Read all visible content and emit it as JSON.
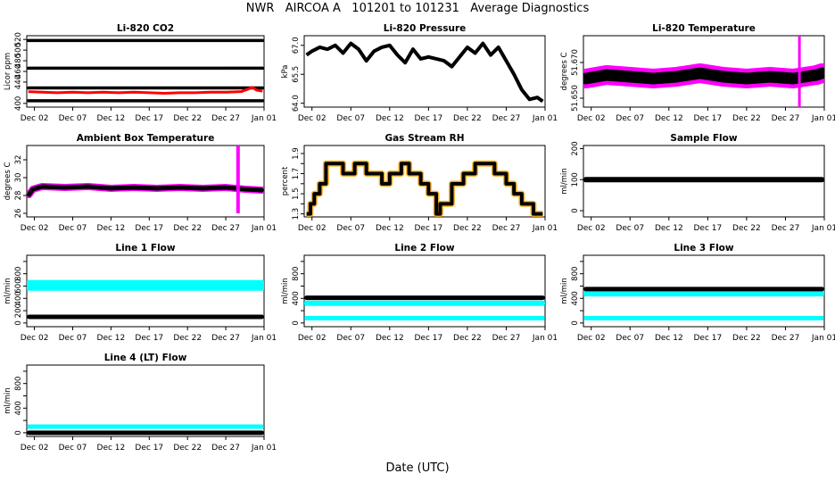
{
  "page": {
    "title": "NWR   AIRCOA A   101201 to 101231   Average Diagnostics",
    "xlabel": "Date (UTC)"
  },
  "colors": {
    "black": "#000000",
    "red": "#ff0000",
    "magenta": "#ff00ff",
    "orange": "#ffa500",
    "cyan": "#00ffff",
    "blue": "#0000ff"
  },
  "chart_data": [
    {
      "id": "co2",
      "type": "scatter",
      "title": "Li-820 CO2",
      "ylabel": "Licor ppm",
      "ylim": [
        393,
        527
      ],
      "yticks": [
        400,
        440,
        460,
        480,
        500,
        520
      ],
      "ytick_labels": [
        "400",
        "440",
        "460",
        "480",
        "500",
        "520"
      ],
      "xlim": [
        0,
        31
      ],
      "xticks": [
        1,
        6,
        11,
        16,
        21,
        26,
        31
      ],
      "xtick_labels": [
        "Dec 02",
        "Dec 07",
        "Dec 12",
        "Dec 17",
        "Dec 22",
        "Dec 27",
        "Jan 01"
      ],
      "series": [
        {
          "name": "standard 1",
          "color": "black",
          "mode": "band",
          "x": [
            0.2,
            30.8
          ],
          "y": [
            518,
            518
          ],
          "width": 3.5
        },
        {
          "name": "standard 2",
          "color": "black",
          "mode": "band",
          "x": [
            0.2,
            30.8
          ],
          "y": [
            466,
            466
          ],
          "width": 3.5
        },
        {
          "name": "standard 3",
          "color": "black",
          "mode": "band",
          "x": [
            0.2,
            30.8
          ],
          "y": [
            429,
            429
          ],
          "width": 3.5
        },
        {
          "name": "standard 4",
          "color": "black",
          "mode": "band",
          "x": [
            0.2,
            30.8
          ],
          "y": [
            405,
            405
          ],
          "width": 3.5
        },
        {
          "name": "sample air",
          "color": "red",
          "mode": "line",
          "x": [
            0.2,
            2,
            4,
            6,
            8,
            10,
            12,
            14,
            16,
            18,
            20,
            22,
            24,
            26,
            28,
            29.5,
            30,
            30.8
          ],
          "y": [
            422,
            421,
            420,
            421,
            420,
            421,
            420,
            421,
            420,
            419,
            420,
            420,
            421,
            421,
            422,
            430,
            425,
            423
          ],
          "width": 3
        }
      ]
    },
    {
      "id": "pressure",
      "type": "line",
      "title": "Li-820 Pressure",
      "ylabel": "kPa",
      "ylim": [
        63.8,
        67.5
      ],
      "yticks": [
        64.0,
        65.5,
        67.0
      ],
      "ytick_labels": [
        "64.0",
        "65.5",
        "67.0"
      ],
      "xlim": [
        0,
        31
      ],
      "xticks": [
        1,
        6,
        11,
        16,
        21,
        26,
        31
      ],
      "xtick_labels": [
        "Dec 02",
        "Dec 07",
        "Dec 12",
        "Dec 17",
        "Dec 22",
        "Dec 27",
        "Jan 01"
      ],
      "series": [
        {
          "name": "pressure",
          "color": "black",
          "mode": "line",
          "width": 4,
          "x": [
            0.3,
            1,
            2,
            3,
            4,
            5,
            6,
            7,
            8,
            9,
            10,
            11,
            12,
            13,
            14,
            15,
            16,
            17,
            18,
            19,
            20,
            21,
            22,
            23,
            24,
            25,
            26,
            27,
            28,
            29,
            30,
            30.7
          ],
          "y": [
            66.5,
            66.7,
            66.9,
            66.8,
            67.0,
            66.6,
            67.1,
            66.8,
            66.2,
            66.7,
            66.9,
            67.0,
            66.5,
            66.1,
            66.8,
            66.3,
            66.4,
            66.3,
            66.2,
            65.9,
            66.4,
            66.9,
            66.6,
            67.1,
            66.5,
            66.9,
            66.2,
            65.5,
            64.7,
            64.2,
            64.3,
            64.1
          ]
        }
      ]
    },
    {
      "id": "temperature",
      "type": "scatter",
      "title": "Li-820 Temperature",
      "ylabel": "degrees C",
      "ylim": [
        51.645,
        51.685
      ],
      "yticks": [
        51.65,
        51.67
      ],
      "ytick_labels": [
        "51.650",
        "51.670"
      ],
      "xlim": [
        0,
        31
      ],
      "xticks": [
        1,
        6,
        11,
        16,
        21,
        26,
        31
      ],
      "xtick_labels": [
        "Dec 02",
        "Dec 07",
        "Dec 12",
        "Dec 17",
        "Dec 22",
        "Dec 27",
        "Jan 01"
      ],
      "series": [
        {
          "name": "spread",
          "color": "magenta",
          "mode": "band",
          "x": [
            0.3,
            3,
            6,
            9,
            12,
            15,
            18,
            21,
            24,
            27,
            30,
            30.7
          ],
          "y": [
            51.661,
            51.663,
            51.662,
            51.661,
            51.662,
            51.664,
            51.662,
            51.661,
            51.662,
            51.661,
            51.663,
            51.664
          ],
          "width": 22
        },
        {
          "name": "mean",
          "color": "black",
          "mode": "band",
          "x": [
            0.3,
            3,
            6,
            9,
            12,
            15,
            18,
            21,
            24,
            27,
            30,
            30.7
          ],
          "y": [
            51.661,
            51.663,
            51.662,
            51.661,
            51.662,
            51.664,
            51.662,
            51.661,
            51.662,
            51.661,
            51.663,
            51.664
          ],
          "width": 13
        },
        {
          "name": "spike",
          "color": "magenta",
          "mode": "line",
          "x": [
            27.8,
            27.8
          ],
          "y": [
            51.645,
            51.685
          ],
          "width": 3
        }
      ]
    },
    {
      "id": "box-temp",
      "type": "scatter",
      "title": "Ambient Box Temperature",
      "ylabel": "degrees C",
      "ylim": [
        25.6,
        33.6
      ],
      "yticks": [
        26,
        28,
        30,
        32
      ],
      "ytick_labels": [
        "26",
        "28",
        "30",
        "32"
      ],
      "xlim": [
        0,
        31
      ],
      "xticks": [
        1,
        6,
        11,
        16,
        21,
        26,
        31
      ],
      "xtick_labels": [
        "Dec 02",
        "Dec 07",
        "Dec 12",
        "Dec 17",
        "Dec 22",
        "Dec 27",
        "Jan 01"
      ],
      "series": [
        {
          "name": "spread",
          "color": "magenta",
          "mode": "band",
          "x": [
            0.3,
            0.8,
            2,
            5,
            8,
            11,
            14,
            17,
            20,
            23,
            26,
            28.5,
            30.7
          ],
          "y": [
            28.1,
            28.7,
            29.0,
            28.9,
            29.0,
            28.8,
            28.9,
            28.8,
            28.9,
            28.8,
            28.9,
            28.7,
            28.6
          ],
          "width": 8
        },
        {
          "name": "mean",
          "color": "black",
          "mode": "band",
          "x": [
            0.3,
            0.8,
            2,
            5,
            8,
            11,
            14,
            17,
            20,
            23,
            26,
            28.5,
            30.7
          ],
          "y": [
            28.1,
            28.7,
            29.0,
            28.9,
            29.0,
            28.8,
            28.9,
            28.8,
            28.9,
            28.8,
            28.9,
            28.7,
            28.6
          ],
          "width": 5
        },
        {
          "name": "spike",
          "color": "magenta",
          "mode": "line",
          "x": [
            27.6,
            27.6
          ],
          "y": [
            26.0,
            33.6
          ],
          "width": 4
        }
      ]
    },
    {
      "id": "rh",
      "type": "scatter",
      "title": "Gas Stream RH",
      "ylabel": "percent",
      "ylim": [
        1.27,
        1.98
      ],
      "yticks": [
        1.3,
        1.4,
        1.5,
        1.6,
        1.7,
        1.8,
        1.9
      ],
      "ytick_labels": [
        "1.3",
        "",
        "1.5",
        "",
        "1.7",
        "",
        "1.9"
      ],
      "xlim": [
        0,
        31
      ],
      "xticks": [
        1,
        6,
        11,
        16,
        21,
        26,
        31
      ],
      "xtick_labels": [
        "Dec 02",
        "Dec 07",
        "Dec 12",
        "Dec 17",
        "Dec 22",
        "Dec 27",
        "Jan 01"
      ],
      "series": [
        {
          "name": "levels",
          "color": "black",
          "mode": "steps",
          "x": [
            0.3,
            0.8,
            1.3,
            2,
            2.8,
            5,
            6.5,
            8,
            10,
            11,
            12.5,
            13.5,
            15,
            16,
            17,
            17.5,
            19,
            20.5,
            22,
            24.5,
            26,
            27,
            28,
            29.5,
            30.7
          ],
          "y": [
            1.3,
            1.4,
            1.5,
            1.6,
            1.8,
            1.7,
            1.8,
            1.7,
            1.6,
            1.7,
            1.8,
            1.7,
            1.6,
            1.5,
            1.3,
            1.4,
            1.6,
            1.7,
            1.8,
            1.7,
            1.6,
            1.5,
            1.4,
            1.3,
            1.3
          ]
        }
      ]
    },
    {
      "id": "sample-flow",
      "type": "scatter",
      "title": "Sample Flow",
      "ylabel": "ml/min",
      "ylim": [
        -20,
        210
      ],
      "yticks": [
        0,
        100,
        200
      ],
      "ytick_labels": [
        "0",
        "100",
        "200"
      ],
      "xlim": [
        0,
        31
      ],
      "xticks": [
        1,
        6,
        11,
        16,
        21,
        26,
        31
      ],
      "xtick_labels": [
        "Dec 02",
        "Dec 07",
        "Dec 12",
        "Dec 17",
        "Dec 22",
        "Dec 27",
        "Jan 01"
      ],
      "series": [
        {
          "name": "sample flow",
          "color": "black",
          "mode": "band",
          "x": [
            0.3,
            30.7
          ],
          "y": [
            100,
            100
          ],
          "width": 6
        }
      ]
    },
    {
      "id": "line1",
      "type": "scatter",
      "title": "Line 1 Flow",
      "ylabel": "ml/min",
      "ylim": [
        -60,
        1100
      ],
      "yticks": [
        0,
        200,
        400,
        600,
        800,
        1000
      ],
      "ytick_labels": [
        "0",
        "200",
        "400",
        "600",
        "800",
        ""
      ],
      "xlim": [
        0,
        31
      ],
      "xticks": [
        1,
        6,
        11,
        16,
        21,
        26,
        31
      ],
      "xtick_labels": [
        "Dec 02",
        "Dec 07",
        "Dec 12",
        "Dec 17",
        "Dec 22",
        "Dec 27",
        "Jan 01"
      ],
      "series": [
        {
          "name": "cal flow",
          "color": "cyan",
          "mode": "band",
          "x": [
            0.3,
            30.7
          ],
          "y": [
            610,
            610
          ],
          "width": 12
        },
        {
          "name": "sample",
          "color": "black",
          "mode": "band",
          "x": [
            0.3,
            30.7
          ],
          "y": [
            100,
            100
          ],
          "width": 5
        }
      ]
    },
    {
      "id": "line2",
      "type": "scatter",
      "title": "Line 2 Flow",
      "ylabel": "ml/min",
      "ylim": [
        -60,
        1100
      ],
      "yticks": [
        0,
        200,
        400,
        600,
        800,
        1000
      ],
      "ytick_labels": [
        "0",
        "",
        "400",
        "",
        "800",
        ""
      ],
      "xlim": [
        0,
        31
      ],
      "xticks": [
        1,
        6,
        11,
        16,
        21,
        26,
        31
      ],
      "xtick_labels": [
        "Dec 02",
        "Dec 07",
        "Dec 12",
        "Dec 17",
        "Dec 22",
        "Dec 27",
        "Jan 01"
      ],
      "series": [
        {
          "name": "low",
          "color": "cyan",
          "mode": "band",
          "x": [
            0.3,
            30.7
          ],
          "y": [
            80,
            80
          ],
          "width": 5
        },
        {
          "name": "high",
          "color": "cyan",
          "mode": "band",
          "x": [
            0.3,
            30.7
          ],
          "y": [
            320,
            320
          ],
          "width": 6
        },
        {
          "name": "flow",
          "color": "black",
          "mode": "band",
          "x": [
            0.3,
            30.7
          ],
          "y": [
            410,
            410
          ],
          "width": 5
        }
      ]
    },
    {
      "id": "line3",
      "type": "scatter",
      "title": "Line 3 Flow",
      "ylabel": "ml/min",
      "ylim": [
        -60,
        1100
      ],
      "yticks": [
        0,
        200,
        400,
        600,
        800,
        1000
      ],
      "ytick_labels": [
        "0",
        "",
        "400",
        "",
        "800",
        ""
      ],
      "xlim": [
        0,
        31
      ],
      "xticks": [
        1,
        6,
        11,
        16,
        21,
        26,
        31
      ],
      "xtick_labels": [
        "Dec 02",
        "Dec 07",
        "Dec 12",
        "Dec 17",
        "Dec 22",
        "Dec 27",
        "Jan 01"
      ],
      "series": [
        {
          "name": "low",
          "color": "cyan",
          "mode": "band",
          "x": [
            0.3,
            30.7
          ],
          "y": [
            80,
            80
          ],
          "width": 5
        },
        {
          "name": "high",
          "color": "cyan",
          "mode": "band",
          "x": [
            0.3,
            30.7
          ],
          "y": [
            490,
            490
          ],
          "width": 8
        },
        {
          "name": "flow",
          "color": "black",
          "mode": "band",
          "x": [
            0.3,
            30.7
          ],
          "y": [
            550,
            550
          ],
          "width": 5
        }
      ]
    },
    {
      "id": "line4",
      "type": "scatter",
      "title": "Line 4 (LT) Flow",
      "ylabel": "ml/min",
      "ylim": [
        -60,
        1100
      ],
      "yticks": [
        0,
        200,
        400,
        600,
        800,
        1000
      ],
      "ytick_labels": [
        "0",
        "",
        "400",
        "",
        "800",
        ""
      ],
      "xlim": [
        0,
        31
      ],
      "xticks": [
        1,
        6,
        11,
        16,
        21,
        26,
        31
      ],
      "xtick_labels": [
        "Dec 02",
        "Dec 07",
        "Dec 12",
        "Dec 17",
        "Dec 22",
        "Dec 27",
        "Jan 01"
      ],
      "series": [
        {
          "name": "lt flow",
          "color": "cyan",
          "mode": "band",
          "x": [
            0.3,
            30.7
          ],
          "y": [
            100,
            100
          ],
          "width": 5
        },
        {
          "name": "zero",
          "color": "black",
          "mode": "band",
          "x": [
            0.3,
            30.7
          ],
          "y": [
            0,
            0
          ],
          "width": 5
        }
      ]
    }
  ]
}
